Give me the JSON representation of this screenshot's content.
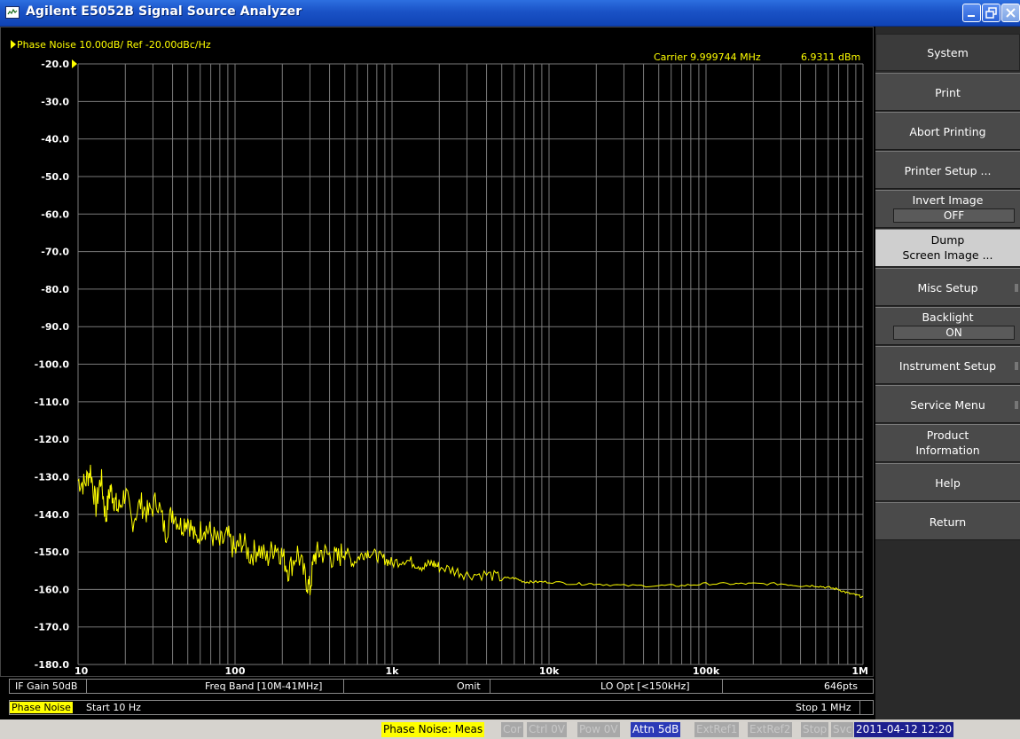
{
  "window": {
    "title": "Agilent E5052B Signal Source Analyzer"
  },
  "trace": {
    "header": "Phase Noise 10.00dB/ Ref -20.00dBc/Hz",
    "carrier_freq": "Carrier 9.999744 MHz",
    "carrier_power": "6.9311 dBm"
  },
  "status_line1": {
    "if_gain": "IF Gain 50dB",
    "freq_band": "Freq Band [10M-41MHz]",
    "omit": "Omit",
    "lo_opt": "LO Opt [<150kHz]",
    "points": "646pts"
  },
  "status_line2": {
    "trace_name": "Phase Noise",
    "start": "Start 10 Hz",
    "stop": "Stop 1 MHz"
  },
  "instrument_status": {
    "measure": "Phase Noise: Meas",
    "cor": "Cor",
    "ctrl": "Ctrl  0V",
    "pow": "Pow  0V",
    "attn": "Attn 5dB",
    "extref1": "ExtRef1",
    "extref2": "ExtRef2",
    "stop": "Stop",
    "svc": "Svc",
    "datetime": "2011-04-12 12:20"
  },
  "softkeys": {
    "header": "System",
    "print": "Print",
    "abort_printing": "Abort Printing",
    "printer_setup": "Printer Setup ...",
    "invert_image": "Invert Image",
    "invert_image_value": "OFF",
    "dump_screen_1": "Dump",
    "dump_screen_2": "Screen Image ...",
    "misc_setup": "Misc Setup",
    "backlight": "Backlight",
    "backlight_value": "ON",
    "instrument_setup": "Instrument Setup",
    "service_menu": "Service Menu",
    "product_info_1": "Product",
    "product_info_2": "Information",
    "help": "Help",
    "return": "Return"
  },
  "colors": {
    "trace": "#ffff00",
    "grid": "#7a7a7a",
    "background": "#000000"
  },
  "chart_data": {
    "type": "line",
    "title": "",
    "xlabel": "",
    "ylabel": "",
    "x_scale": "log",
    "xlim": [
      10,
      1000000
    ],
    "ylim": [
      -180,
      -20
    ],
    "y_ticks": [
      "-20.0",
      "-30.0",
      "-40.0",
      "-50.0",
      "-60.0",
      "-70.0",
      "-80.0",
      "-90.0",
      "-100.0",
      "-110.0",
      "-120.0",
      "-130.0",
      "-140.0",
      "-150.0",
      "-160.0",
      "-170.0",
      "-180.0"
    ],
    "x_ticks": [
      "10",
      "100",
      "1k",
      "10k",
      "100k",
      "1M"
    ],
    "grid": true,
    "series": [
      {
        "x": [
          10,
          11,
          12,
          13,
          14,
          15,
          16,
          17,
          18,
          20,
          22,
          25,
          28,
          32,
          36,
          40,
          45,
          50,
          56,
          63,
          70,
          80,
          90,
          100,
          110,
          125,
          140,
          160,
          180,
          200,
          220,
          250,
          280,
          300,
          320,
          350,
          400,
          450,
          500,
          560,
          630,
          700,
          800,
          900,
          1000,
          1200,
          1400,
          1600,
          1800,
          2000,
          2500,
          3000,
          4000,
          5000,
          6000,
          7000,
          8000,
          10000,
          15000,
          20000,
          30000,
          50000,
          70000,
          100000,
          150000,
          200000,
          300000,
          400000,
          500000,
          600000,
          700000,
          800000,
          900000,
          1000000
        ],
        "y": [
          -131,
          -132,
          -128,
          -138,
          -130,
          -141,
          -133,
          -136,
          -139,
          -134,
          -142,
          -137,
          -140,
          -136,
          -145,
          -139,
          -143,
          -141,
          -147,
          -143,
          -145,
          -148,
          -146,
          -150,
          -147,
          -151,
          -149,
          -152,
          -148,
          -151,
          -155,
          -150,
          -157,
          -160,
          -151,
          -150,
          -151,
          -152,
          -149,
          -153,
          -151,
          -150,
          -151,
          -152,
          -153,
          -152,
          -153,
          -154,
          -153,
          -154,
          -155,
          -156,
          -156,
          -157,
          -157,
          -158,
          -158,
          -158,
          -158.5,
          -158.5,
          -159,
          -159,
          -159,
          -158.5,
          -158.5,
          -158.5,
          -158.5,
          -159,
          -159,
          -159.5,
          -160,
          -161,
          -161.5,
          -162
        ]
      }
    ]
  }
}
